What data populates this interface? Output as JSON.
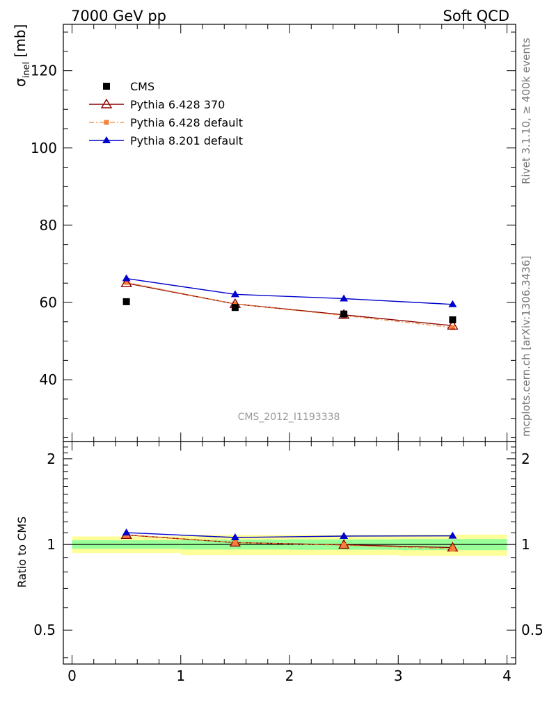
{
  "header": {
    "left": "7000 GeV pp",
    "right": "Soft QCD"
  },
  "side_labels": {
    "rivet": "Rivet 3.1.10, ≥ 400k events",
    "mcplots": "mcplots.cern.ch [arXiv:1306.3436]"
  },
  "watermark": "CMS_2012_I1193338",
  "colors": {
    "cms": "#000000",
    "p6_370": "#8b0000",
    "p6_default": "#f08a3c",
    "p6_default_fill": "#f4803a",
    "p8": "#0000cc",
    "band_yellow": "#ffff99",
    "band_green": "#99ff99"
  },
  "chart_data": [
    {
      "type": "scatter",
      "panel": "main",
      "ylabel": "σ",
      "ylabel_sub": "inel",
      "ylabel_unit": "[mb]",
      "xlim": [
        -0.08,
        4.08
      ],
      "ylim": [
        24,
        132
      ],
      "ytick_labels": [
        {
          "v": 40,
          "label": "40"
        },
        {
          "v": 60,
          "label": "60"
        },
        {
          "v": 80,
          "label": "80"
        },
        {
          "v": 100,
          "label": "100"
        },
        {
          "v": 120,
          "label": "120"
        }
      ],
      "legend_position": "top-left",
      "series": [
        {
          "key": "cms",
          "name": "CMS",
          "x": [
            0.5,
            1.5,
            2.5,
            3.5
          ],
          "values": [
            60.2,
            58.7,
            57.0,
            55.5
          ]
        },
        {
          "key": "p6_370",
          "name": "Pythia 6.428 370",
          "x": [
            0.5,
            1.5,
            2.5,
            3.5
          ],
          "values": [
            65.0,
            59.6,
            56.8,
            54.0
          ]
        },
        {
          "key": "p6_default",
          "name": "Pythia 6.428 default",
          "x": [
            0.5,
            1.5,
            2.5,
            3.5
          ],
          "values": [
            65.2,
            59.6,
            56.6,
            53.5
          ]
        },
        {
          "key": "p8",
          "name": "Pythia 8.201 default",
          "x": [
            0.5,
            1.5,
            2.5,
            3.5
          ],
          "values": [
            66.2,
            62.1,
            61.0,
            59.5
          ]
        }
      ]
    },
    {
      "type": "line",
      "panel": "ratio",
      "ylabel": "Ratio to CMS",
      "xlim": [
        -0.08,
        4.08
      ],
      "ylim": [
        0.38,
        2.3
      ],
      "log_y": true,
      "xtick_labels": [
        {
          "v": 0,
          "label": "0"
        },
        {
          "v": 1,
          "label": "1"
        },
        {
          "v": 2,
          "label": "2"
        },
        {
          "v": 3,
          "label": "3"
        },
        {
          "v": 4,
          "label": "4"
        }
      ],
      "ytick_labels": [
        {
          "v": 0.5,
          "label": "0.5"
        },
        {
          "v": 1,
          "label": "1"
        },
        {
          "v": 2,
          "label": "2"
        }
      ],
      "bands": [
        {
          "x0": 0,
          "x1": 1,
          "yellow": [
            0.933,
            1.067
          ],
          "green": [
            0.965,
            1.035
          ]
        },
        {
          "x0": 1,
          "x1": 2,
          "yellow": [
            0.918,
            1.08
          ],
          "green": [
            0.96,
            1.04
          ]
        },
        {
          "x0": 2,
          "x1": 3,
          "yellow": [
            0.918,
            1.08
          ],
          "green": [
            0.958,
            1.042
          ]
        },
        {
          "x0": 3,
          "x1": 4,
          "yellow": [
            0.912,
            1.083
          ],
          "green": [
            0.955,
            1.045
          ]
        }
      ],
      "series": [
        {
          "key": "p6_370",
          "name": "Pythia 6.428 370",
          "x": [
            0.5,
            1.5,
            2.5,
            3.5
          ],
          "values": [
            1.08,
            1.015,
            0.997,
            0.975
          ]
        },
        {
          "key": "p6_default",
          "name": "Pythia 6.428 default",
          "x": [
            0.5,
            1.5,
            2.5,
            3.5
          ],
          "values": [
            1.082,
            1.015,
            0.993,
            0.965
          ]
        },
        {
          "key": "p8",
          "name": "Pythia 8.201 default",
          "x": [
            0.5,
            1.5,
            2.5,
            3.5
          ],
          "values": [
            1.1,
            1.058,
            1.07,
            1.072
          ]
        }
      ]
    }
  ]
}
